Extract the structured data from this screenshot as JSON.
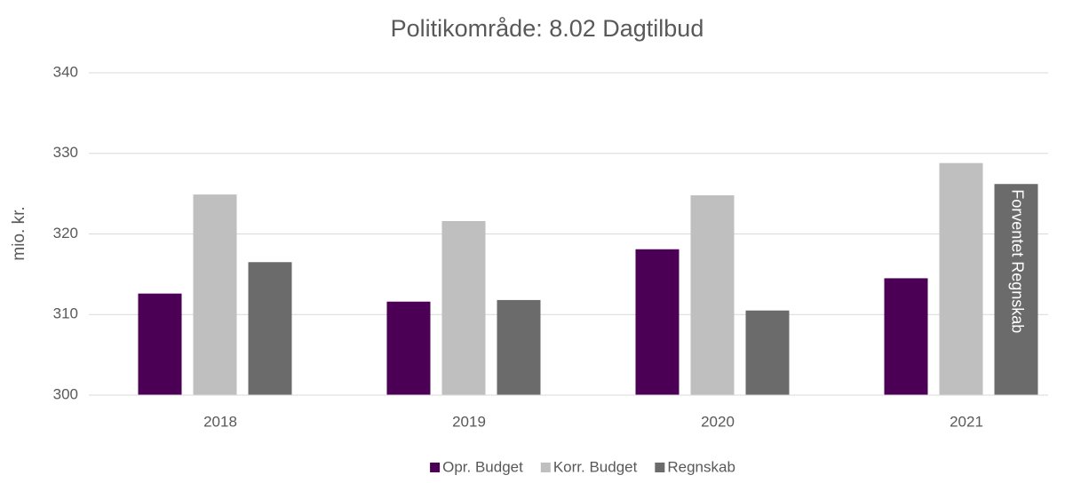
{
  "chart_data": {
    "type": "bar",
    "title": "Politikområde: 8.02 Dagtilbud",
    "y_label": "mio. kr.",
    "categories": [
      "2018",
      "2019",
      "2020",
      "2021"
    ],
    "series": [
      {
        "name": "Opr. Budget",
        "color": "#4b0055",
        "values": [
          312.6,
          311.6,
          318.1,
          314.5
        ]
      },
      {
        "name": "Korr. Budget",
        "color": "#bfbfbf",
        "values": [
          324.9,
          321.6,
          324.8,
          328.8
        ]
      },
      {
        "name": "Regnskab",
        "color": "#6b6b6b",
        "values": [
          316.5,
          311.8,
          310.5,
          326.2
        ]
      }
    ],
    "annotations": [
      "Forventet Regnskab"
    ],
    "ylim": [
      300,
      340
    ],
    "yticks": [
      300,
      310,
      320,
      330,
      340
    ],
    "grid": true,
    "legend": "bottom"
  }
}
